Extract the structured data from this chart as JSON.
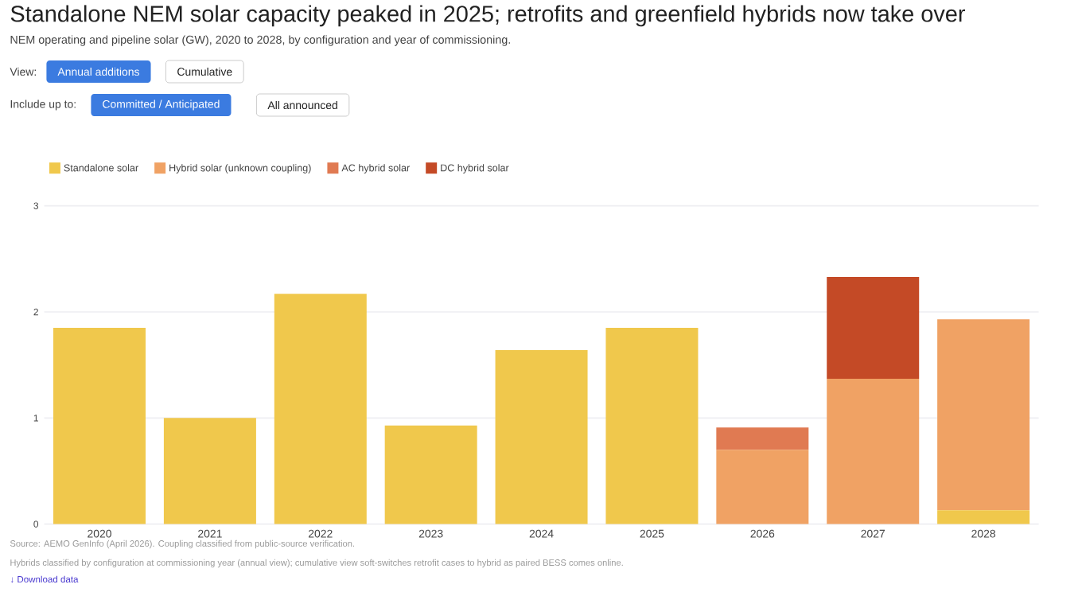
{
  "chart_data": {
    "type": "bar",
    "stacked": true,
    "title": "Standalone NEM solar capacity peaked in 2025; retrofits and greenfield hybrids now take over",
    "subtitle": "NEM operating and pipeline solar (GW), 2020 to 2028, by configuration and year of commissioning.",
    "categories": [
      "2020",
      "2021",
      "2022",
      "2023",
      "2024",
      "2025",
      "2026",
      "2027",
      "2028"
    ],
    "series": [
      {
        "name": "Standalone solar",
        "color": "#f0c84c",
        "values": [
          1.85,
          1.0,
          2.17,
          0.93,
          1.64,
          1.85,
          null,
          null,
          0.13
        ]
      },
      {
        "name": "Hybrid solar (unknown coupling)",
        "color": "#f0a264",
        "values": [
          null,
          null,
          null,
          null,
          null,
          null,
          0.7,
          1.37,
          1.8
        ]
      },
      {
        "name": "AC hybrid solar",
        "color": "#e07a52",
        "values": [
          null,
          null,
          null,
          null,
          null,
          null,
          0.21,
          null,
          null
        ]
      },
      {
        "name": "DC hybrid solar",
        "color": "#c44a26",
        "values": [
          null,
          null,
          null,
          null,
          null,
          null,
          null,
          0.96,
          null
        ]
      }
    ],
    "ylim": [
      0,
      3
    ],
    "yticks": [
      0,
      1,
      2,
      3
    ],
    "grid": "y",
    "legend": "top",
    "annotations": [
      "View:",
      "Annual additions",
      "Cumulative",
      "Include up to:",
      "Committed / Anticipated",
      "All announced",
      "Source: AEMO GenInfo (April 2026). Coupling classified from public-source verification.",
      "Hybrids classified by configuration at commissioning year (annual view); cumulative view soft-switches retrofit cases to hybrid as paired BESS comes online.",
      "↓ Download data"
    ]
  }
}
